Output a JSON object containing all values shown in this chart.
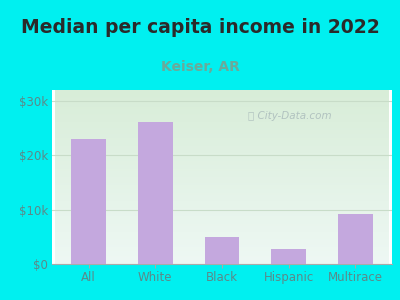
{
  "title": "Median per capita income in 2022",
  "subtitle": "Keiser, AR",
  "categories": [
    "All",
    "White",
    "Black",
    "Hispanic",
    "Multirace"
  ],
  "values": [
    23000,
    26200,
    5000,
    2800,
    9200
  ],
  "bar_color": "#c4a8de",
  "background_outer": "#00f0f0",
  "title_color": "#2a2a2a",
  "subtitle_color": "#6aaa9a",
  "tick_color": "#5a8a8a",
  "ylim": [
    0,
    32000
  ],
  "yticks": [
    0,
    10000,
    20000,
    30000
  ],
  "ytick_labels": [
    "$0",
    "$10k",
    "$20k",
    "$30k"
  ],
  "watermark": "City-Data.com",
  "title_fontsize": 13.5,
  "subtitle_fontsize": 10,
  "tick_fontsize": 8.5,
  "grid_color": "#c8dcc8",
  "plot_bg_top": "#ddeedd",
  "plot_bg_bottom": "#eef8f4"
}
